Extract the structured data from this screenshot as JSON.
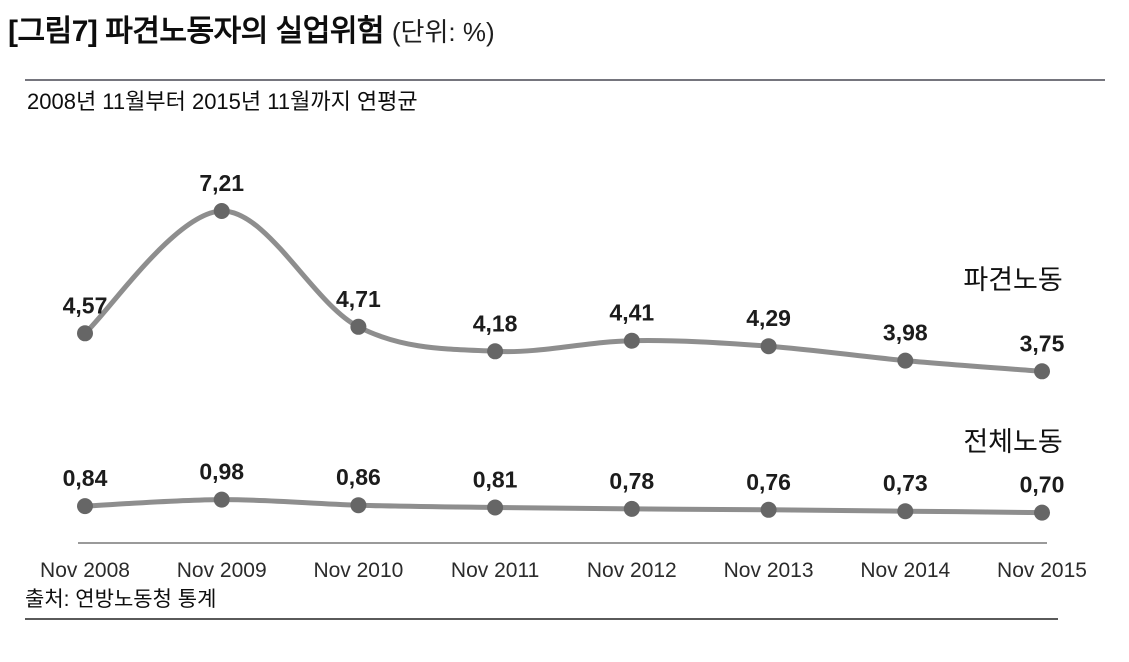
{
  "figure": {
    "title": "[그림7] 파견노동자의 실업위험",
    "unit_note": "(단위: %)",
    "subtitle": "2008년 11월부터 2015년 11월까지 연평균",
    "source": "출처: 연방노동청 통계"
  },
  "colors": {
    "line": "#8e8e8e",
    "marker": "#666666",
    "data_label": "#1c1c1c",
    "axis_line": "#9a9a9a",
    "tick_text": "#2b2b2b",
    "legend_text": "#111111",
    "top_rule": "#75757d",
    "bottom_rule": "#5a5a5a"
  },
  "chart_data": {
    "type": "line",
    "title": "파견노동자의 실업위험",
    "subtitle": "2008년 11월부터 2015년 11월까지 연평균",
    "unit": "%",
    "decimal_separator": ",",
    "categories": [
      "Nov 2008",
      "Nov 2009",
      "Nov 2010",
      "Nov 2011",
      "Nov 2012",
      "Nov 2013",
      "Nov 2014",
      "Nov 2015"
    ],
    "series": [
      {
        "name": "파견노동",
        "values": [
          4.57,
          7.21,
          4.71,
          4.18,
          4.41,
          4.29,
          3.98,
          3.75
        ],
        "labels": [
          "4,57",
          "7,21",
          "4,71",
          "4,18",
          "4,41",
          "4,29",
          "3,98",
          "3,75"
        ]
      },
      {
        "name": "전체노동",
        "values": [
          0.84,
          0.98,
          0.86,
          0.81,
          0.78,
          0.76,
          0.73,
          0.7
        ],
        "labels": [
          "0,84",
          "0,98",
          "0,86",
          "0,81",
          "0,78",
          "0,76",
          "0,73",
          "0,70"
        ]
      }
    ],
    "ylim": [
      0,
      8
    ],
    "grid": false,
    "y_axis_visible": false,
    "legend_position": "inline-right",
    "source": "출처: 연방노동청 통계"
  }
}
